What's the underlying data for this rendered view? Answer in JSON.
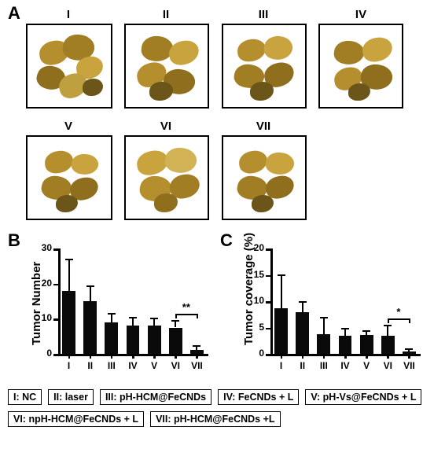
{
  "panels": {
    "A": "A",
    "B": "B",
    "C": "C"
  },
  "roman": {
    "I": "I",
    "II": "II",
    "III": "III",
    "IV": "IV",
    "V": "V",
    "VI": "VI",
    "VII": "VII"
  },
  "chartB": {
    "type": "bar",
    "ylabel": "Tumor Number",
    "label_fontsize": 15,
    "ylim": [
      0,
      30
    ],
    "ytick_step": 10,
    "yticks": [
      0,
      10,
      20,
      30
    ],
    "categories": [
      "I",
      "II",
      "III",
      "IV",
      "V",
      "VI",
      "VII"
    ],
    "values": [
      18,
      15,
      9,
      8,
      8,
      7.5,
      1.2
    ],
    "errors": [
      9,
      4.5,
      2.7,
      2.5,
      2.2,
      2.2,
      1.2
    ],
    "bar_color": "#0a0a0a",
    "axis_color": "#000000",
    "background_color": "#ffffff",
    "bar_width": 0.62,
    "sig": {
      "from": "VI",
      "to": "VII",
      "label": "**"
    }
  },
  "chartC": {
    "type": "bar",
    "ylabel": "Tumor coverage (%)",
    "label_fontsize": 15,
    "ylim": [
      0,
      20
    ],
    "ytick_step": 5,
    "yticks": [
      0,
      5,
      10,
      15,
      20
    ],
    "categories": [
      "I",
      "II",
      "III",
      "IV",
      "V",
      "VI",
      "VII"
    ],
    "values": [
      8.7,
      7.9,
      3.7,
      3.5,
      3.6,
      3.4,
      0.5
    ],
    "errors": [
      6.4,
      2.1,
      3.3,
      1.4,
      0.9,
      2.1,
      0.5
    ],
    "bar_color": "#0a0a0a",
    "axis_color": "#000000",
    "background_color": "#ffffff",
    "bar_width": 0.62,
    "sig": {
      "from": "VI",
      "to": "VII",
      "label": "*"
    }
  },
  "legend": {
    "I": "I: NC",
    "II": "II: laser",
    "III": "III: pH-HCM@FeCNDs",
    "IV": "IV: FeCNDs + L",
    "V": "V: pH-Vs@FeCNDs + L",
    "VI": "VI: npH-HCM@FeCNDs + L",
    "VII": "VII: pH-HCM@FeCNDs +L"
  },
  "photoA": {
    "box_border_color": "#000000",
    "box_bg": "#ffffff",
    "organ_colors": [
      "#b58f2e",
      "#a17d23",
      "#c9a33d",
      "#8f6e1e",
      "#bfa040",
      "#6b5519",
      "#d1b255"
    ],
    "rows": [
      {
        "labels": [
          "I",
          "II",
          "III",
          "IV"
        ]
      },
      {
        "labels": [
          "V",
          "VI",
          "VII"
        ]
      }
    ]
  }
}
